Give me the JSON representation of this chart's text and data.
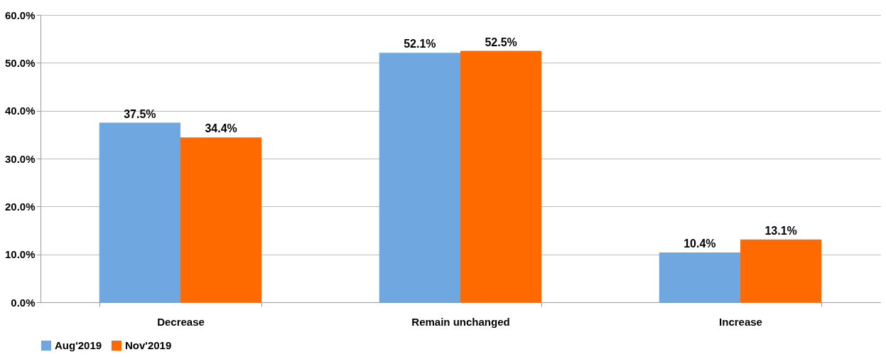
{
  "chart_data": {
    "type": "bar",
    "categories": [
      "Decrease",
      "Remain unchanged",
      "Increase"
    ],
    "series": [
      {
        "name": "Aug'2019",
        "color": "#6fa8e0",
        "values": [
          37.5,
          52.1,
          10.4
        ],
        "value_labels": [
          "37.5%",
          "52.1%",
          "10.4%"
        ]
      },
      {
        "name": "Nov'2019",
        "color": "#ff6a00",
        "values": [
          34.4,
          52.5,
          13.1
        ],
        "value_labels": [
          "34.4%",
          "52.5%",
          "13.1%"
        ]
      }
    ],
    "ylim": [
      0,
      60
    ],
    "yticks": [
      {
        "value": 0,
        "label": "0.0%"
      },
      {
        "value": 10,
        "label": "10.0%"
      },
      {
        "value": 20,
        "label": "20.0%"
      },
      {
        "value": 30,
        "label": "30.0%"
      },
      {
        "value": 40,
        "label": "40.0%"
      },
      {
        "value": 50,
        "label": "50.0%"
      },
      {
        "value": 60,
        "label": "60.0%"
      }
    ],
    "grid": "y",
    "legend": "bottom"
  }
}
